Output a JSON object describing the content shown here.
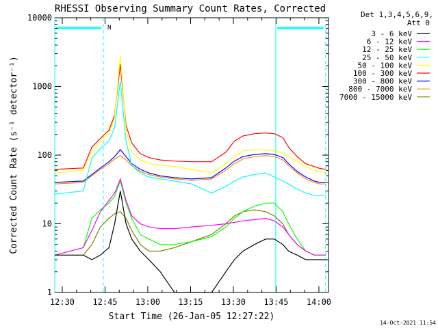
{
  "chart_data": {
    "type": "line",
    "title": "RHESSI Observing Summary Count Rates, Corrected",
    "xlabel": "Start Time (26-Jan-05 12:27:22)",
    "ylabel": "Corrected Count Rate (s⁻¹ detector⁻¹)",
    "yscale": "log",
    "ylim": [
      1,
      10000
    ],
    "xlim_minutes": [
      0,
      96
    ],
    "x_tick_labels": [
      "12:30",
      "12:45",
      "13:00",
      "13:15",
      "13:30",
      "13:45",
      "14:00"
    ],
    "x_tick_minutes": [
      2.63,
      17.63,
      32.63,
      47.63,
      62.63,
      77.63,
      92.63
    ],
    "y_tick_labels": [
      "1",
      "10",
      "100",
      "1000",
      "10000"
    ],
    "y_tick_values": [
      1,
      10,
      100,
      1000,
      10000
    ],
    "legend_header": [
      "Det 1,3,4,5,6,9,",
      "Att 0"
    ],
    "legend_position": "right",
    "night_marker_label": "N",
    "vertical_markers_minutes": [
      0,
      17,
      77.5,
      95
    ],
    "series": [
      {
        "name": "3 - 6 keV",
        "color": "#000000",
        "x": [
          0,
          10,
          13,
          16,
          19,
          21,
          23,
          25,
          27,
          30,
          33,
          37,
          42,
          48,
          55,
          60,
          63,
          66,
          70,
          74,
          77,
          80,
          82,
          85,
          88,
          91,
          93,
          95
        ],
        "y": [
          3.5,
          3.5,
          3,
          3.5,
          4.5,
          10,
          30,
          10,
          6,
          4,
          3,
          2,
          1,
          1,
          1,
          2,
          3,
          4,
          5,
          6,
          6,
          5,
          4,
          3.5,
          3,
          3,
          3,
          3
        ]
      },
      {
        "name": "6 - 12 keV",
        "color": "#ff00ff",
        "x": [
          0,
          10,
          13,
          16,
          19,
          21,
          23,
          25,
          27,
          30,
          33,
          37,
          42,
          48,
          55,
          60,
          63,
          66,
          70,
          74,
          77,
          80,
          82,
          85,
          88,
          91,
          93,
          95
        ],
        "y": [
          3.5,
          4.5,
          8,
          15,
          22,
          28,
          45,
          22,
          13,
          10,
          9,
          8.5,
          8.5,
          9,
          9.5,
          10,
          10.5,
          11,
          11.5,
          12,
          11,
          9,
          7,
          5,
          4,
          3.5,
          3.5,
          3.5
        ]
      },
      {
        "name": "12 - 25 keV",
        "color": "#00ff00",
        "x": [
          0,
          10,
          13,
          16,
          19,
          21,
          23,
          25,
          27,
          30,
          33,
          37,
          42,
          48,
          55,
          60,
          63,
          66,
          70,
          74,
          77,
          80,
          82,
          85,
          88,
          91,
          93,
          95
        ],
        "y": [
          3.5,
          4.5,
          12,
          16,
          20,
          25,
          42,
          20,
          12,
          7,
          6,
          5,
          5,
          5.5,
          6.5,
          9,
          12,
          15,
          18,
          20,
          20,
          15,
          10,
          6,
          4,
          3.5,
          3.5,
          3.5
        ]
      },
      {
        "name": "25 - 50 keV",
        "color": "#00ffff",
        "x": [
          0,
          10,
          13,
          16,
          19,
          21,
          23,
          25,
          27,
          30,
          33,
          37,
          42,
          48,
          55,
          60,
          63,
          66,
          70,
          74,
          77,
          80,
          82,
          85,
          88,
          91,
          93,
          95
        ],
        "y": [
          27,
          30,
          90,
          125,
          160,
          250,
          1200,
          160,
          70,
          55,
          48,
          45,
          42,
          38,
          28,
          35,
          42,
          48,
          52,
          55,
          48,
          42,
          38,
          32,
          28,
          26,
          26,
          26
        ]
      },
      {
        "name": "50 - 100 keV",
        "color": "#ffff00",
        "x": [
          0,
          10,
          13,
          16,
          19,
          21,
          23,
          25,
          27,
          30,
          33,
          37,
          42,
          48,
          55,
          60,
          63,
          66,
          70,
          74,
          77,
          80,
          82,
          85,
          88,
          91,
          93,
          95
        ],
        "y": [
          55,
          60,
          110,
          160,
          210,
          350,
          2800,
          230,
          110,
          85,
          75,
          72,
          68,
          62,
          55,
          75,
          95,
          115,
          120,
          118,
          115,
          108,
          95,
          80,
          68,
          60,
          58,
          55
        ]
      },
      {
        "name": "100 - 300 keV",
        "color": "#ff0000",
        "x": [
          0,
          10,
          13,
          16,
          19,
          21,
          23,
          25,
          27,
          30,
          33,
          37,
          42,
          48,
          55,
          60,
          63,
          66,
          70,
          74,
          77,
          80,
          82,
          85,
          88,
          91,
          93,
          95
        ],
        "y": [
          62,
          65,
          130,
          175,
          230,
          380,
          2100,
          270,
          150,
          105,
          92,
          85,
          82,
          80,
          80,
          110,
          160,
          190,
          205,
          210,
          205,
          180,
          130,
          95,
          75,
          68,
          64,
          62
        ]
      },
      {
        "name": "300 - 800 keV",
        "color": "#0000ff",
        "x": [
          0,
          10,
          13,
          16,
          19,
          21,
          23,
          25,
          27,
          30,
          33,
          37,
          42,
          48,
          55,
          60,
          63,
          66,
          70,
          74,
          77,
          80,
          82,
          85,
          88,
          91,
          93,
          95
        ],
        "y": [
          40,
          42,
          52,
          65,
          80,
          95,
          120,
          95,
          75,
          62,
          55,
          50,
          47,
          45,
          47,
          65,
          82,
          95,
          102,
          105,
          102,
          92,
          75,
          58,
          48,
          42,
          40,
          40
        ]
      },
      {
        "name": "800 - 7000 keV",
        "color": "#ff8800",
        "x": [
          0,
          10,
          13,
          16,
          19,
          21,
          23,
          25,
          27,
          30,
          33,
          37,
          42,
          48,
          55,
          60,
          63,
          66,
          70,
          74,
          77,
          80,
          82,
          85,
          88,
          91,
          93,
          95
        ],
        "y": [
          38,
          40,
          50,
          62,
          75,
          88,
          98,
          85,
          70,
          58,
          52,
          48,
          45,
          43,
          45,
          60,
          75,
          88,
          95,
          98,
          95,
          85,
          70,
          55,
          45,
          40,
          38,
          38
        ]
      },
      {
        "name": "7000 - 15000 keV",
        "color": "#808000",
        "x": [
          0,
          10,
          13,
          16,
          19,
          21,
          23,
          25,
          27,
          30,
          33,
          37,
          42,
          48,
          55,
          60,
          63,
          66,
          70,
          74,
          77,
          80,
          82,
          85,
          88,
          91,
          93,
          95
        ],
        "y": [
          3.5,
          3.5,
          5,
          9,
          12,
          14,
          15,
          12,
          8,
          5,
          4,
          4,
          4.5,
          5.5,
          7,
          10,
          13,
          15,
          16,
          15,
          13,
          10,
          7,
          5,
          4,
          3.5,
          3.5,
          3.5
        ]
      }
    ]
  },
  "timestamp": "14-Oct-2021 11:54"
}
